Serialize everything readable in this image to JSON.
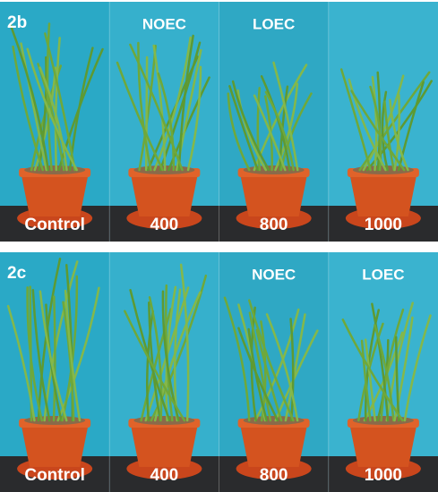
{
  "panels": [
    {
      "label": "2b",
      "columns": [
        {
          "pot_label": "Control"
        },
        {
          "header": "NOEC",
          "pot_label": "400"
        },
        {
          "header": "LOEC",
          "pot_label": "800"
        },
        {
          "pot_label": "1000"
        }
      ]
    },
    {
      "label": "2c",
      "columns": [
        {
          "pot_label": "Control"
        },
        {
          "pot_label": "400"
        },
        {
          "header": "NOEC",
          "pot_label": "800"
        },
        {
          "header": "LOEC",
          "pot_label": "1000"
        }
      ]
    }
  ]
}
